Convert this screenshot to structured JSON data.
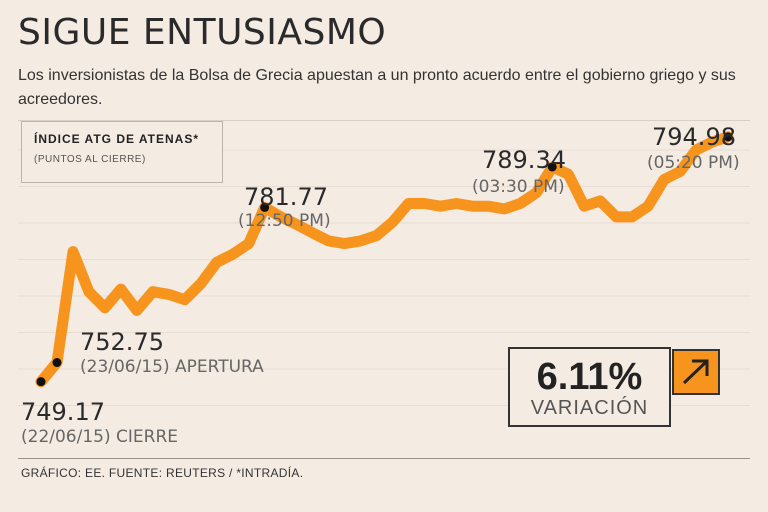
{
  "header": {
    "title": "SIGUE ENTUSIASMO",
    "subtitle": "Los inversionistas de la Bolsa de Grecia apuestan a un pronto acuerdo entre el gobierno griego y sus acreedores."
  },
  "legend": {
    "title": "ÍNDICE ATG DE ATENAS*",
    "subtitle": "(PUNTOS AL CIERRE)"
  },
  "variation": {
    "percent": "6.11%",
    "label": "VARIACIÓN",
    "icon": "arrow-up-right-icon"
  },
  "footer": "GRÁFICO: EE. FUENTE: REUTERS / *INTRADÍA.",
  "colors": {
    "line": "#f7941d",
    "marker": "#111111",
    "background": "#f4ebe3",
    "grid": "#e8ddd3"
  },
  "annotations": [
    {
      "value": "749.17",
      "time": "(22/06/15) CIERRE"
    },
    {
      "value": "752.75",
      "time": "(23/06/15) APERTURA"
    },
    {
      "value": "781.77",
      "time": "(12:50 PM)"
    },
    {
      "value": "789.34",
      "time": "(03:30 PM)"
    },
    {
      "value": "794.98",
      "time": "(05:20 PM)"
    }
  ],
  "chart_data": {
    "type": "line",
    "title": "ÍNDICE ATG DE ATENAS*",
    "ylabel": "(PUNTOS AL CIERRE)",
    "ylim": [
      742,
      800
    ],
    "grid": true,
    "series": [
      {
        "values": [
          749.17,
          752.75,
          773.5,
          766.0,
          763.0,
          766.5,
          762.5,
          766.0,
          765.5,
          764.5,
          767.5,
          771.5,
          773.0,
          775.0,
          781.77,
          780.0,
          778.6,
          777.0,
          775.5,
          775.0,
          775.5,
          776.5,
          779.0,
          782.5,
          782.5,
          782.0,
          782.5,
          782.0,
          782.0,
          781.5,
          782.5,
          784.5,
          789.34,
          788.0,
          782.0,
          783.0,
          780.0,
          780.0,
          782.0,
          787.0,
          788.5,
          792.5,
          794.0,
          794.98
        ]
      }
    ],
    "highlight_points": [
      {
        "index": 0,
        "value": 749.17
      },
      {
        "index": 1,
        "value": 752.75
      },
      {
        "index": 14,
        "value": 781.77
      },
      {
        "index": 32,
        "value": 789.34
      },
      {
        "index": 43,
        "value": 794.98
      }
    ]
  }
}
